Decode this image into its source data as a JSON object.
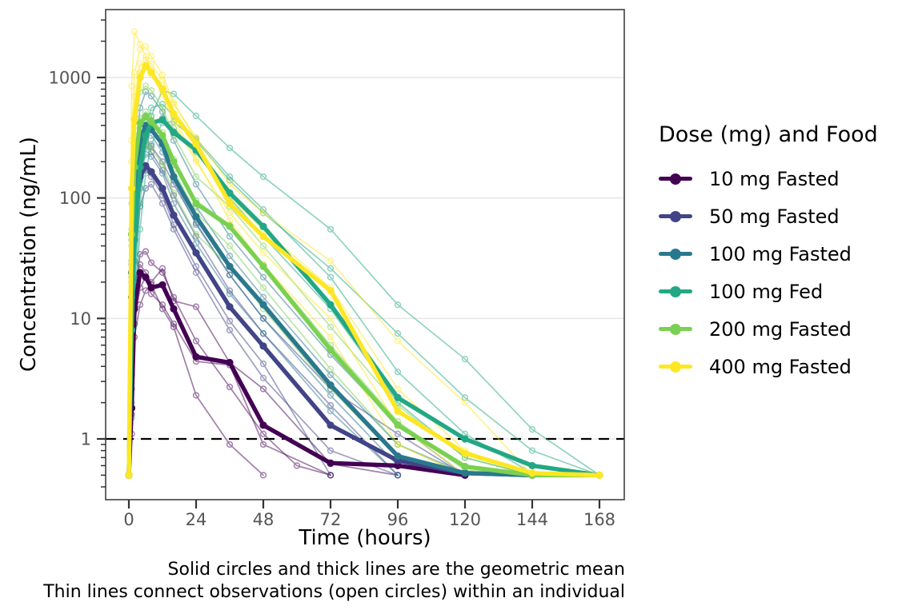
{
  "figure": {
    "y_axis": {
      "label": "Concentration (ng/mL)",
      "ticks": [
        {
          "label": "1000",
          "value": 1000
        },
        {
          "label": "100",
          "value": 100
        },
        {
          "label": "10",
          "value": 10
        },
        {
          "label": "1",
          "value": 1
        }
      ]
    },
    "x_axis": {
      "label": "Time (hours)",
      "ticks": [
        {
          "label": "0",
          "value": 0
        },
        {
          "label": "24",
          "value": 24
        },
        {
          "label": "48",
          "value": 48
        },
        {
          "label": "72",
          "value": 72
        },
        {
          "label": "96",
          "value": 96
        },
        {
          "label": "120",
          "value": 120
        },
        {
          "label": "144",
          "value": 144
        },
        {
          "label": "168",
          "value": 168
        }
      ]
    },
    "legend": {
      "title": "Dose (mg) and Food",
      "items": [
        {
          "label": "10 mg Fasted",
          "color": "#440154"
        },
        {
          "label": "50 mg Fasted",
          "color": "#414487"
        },
        {
          "label": "100 mg Fasted",
          "color": "#2a788e"
        },
        {
          "label": "100 mg Fed",
          "color": "#22a884"
        },
        {
          "label": "200 mg Fasted",
          "color": "#7ad151"
        },
        {
          "label": "400 mg Fasted",
          "color": "#fde725"
        }
      ]
    },
    "caption": {
      "line1": "Solid circles and thick lines are the geometric mean",
      "line2": "Thin lines connect observations (open circles) within an individual"
    }
  },
  "chart_data": {
    "type": "line",
    "title": "",
    "xlabel": "Time (hours)",
    "ylabel": "Concentration (ng/mL)",
    "y_scale": "log10",
    "ylim": [
      0.31,
      3660
    ],
    "xlim": [
      -8,
      177
    ],
    "grid": "major-y-only",
    "legend_position": "right",
    "y_gridlines": [
      1,
      10,
      100,
      1000
    ],
    "reference_hline": 1,
    "lloq_floor_value": 0.5,
    "colors": {
      "grid": "#e8e8e8",
      "panel_border": "#404040",
      "tick": "#333333",
      "tick_label": "#555555",
      "reference_line": "#000000"
    },
    "series": [
      {
        "name": "10 mg Fasted",
        "color": "#440154",
        "times": [
          0,
          1,
          2,
          4,
          6,
          8,
          12,
          16,
          24,
          36,
          48,
          72,
          96,
          120
        ],
        "values": [
          0.5,
          1.8,
          12,
          24,
          22,
          18,
          19,
          12,
          4.8,
          4.3,
          1.3,
          0.63,
          0.6,
          0.5
        ]
      },
      {
        "name": "50 mg Fasted",
        "color": "#414487",
        "times": [
          0,
          1,
          2,
          4,
          6,
          8,
          12,
          16,
          24,
          36,
          48,
          72,
          96,
          120,
          144
        ],
        "values": [
          0.5,
          15,
          62,
          150,
          185,
          165,
          120,
          72,
          35,
          12.5,
          5.9,
          1.3,
          0.66,
          0.52,
          0.5
        ]
      },
      {
        "name": "100 mg Fasted",
        "color": "#2a788e",
        "times": [
          0,
          1,
          2,
          4,
          6,
          8,
          12,
          16,
          24,
          36,
          48,
          72,
          96,
          120,
          144
        ],
        "values": [
          0.5,
          24,
          100,
          300,
          400,
          370,
          280,
          150,
          70,
          27,
          13,
          2.8,
          0.72,
          0.52,
          0.5
        ]
      },
      {
        "name": "100 mg Fed",
        "color": "#22a884",
        "times": [
          0,
          1,
          2,
          4,
          6,
          8,
          12,
          16,
          24,
          36,
          48,
          72,
          96,
          120,
          144,
          168
        ],
        "values": [
          0.5,
          8,
          45,
          180,
          330,
          420,
          445,
          350,
          250,
          110,
          58,
          13,
          2.2,
          1.0,
          0.6,
          0.5
        ]
      },
      {
        "name": "200 mg Fasted",
        "color": "#7ad151",
        "times": [
          0,
          1,
          2,
          4,
          6,
          8,
          12,
          16,
          24,
          36,
          48,
          72,
          96,
          120,
          144,
          168
        ],
        "values": [
          0.5,
          50,
          180,
          420,
          470,
          430,
          330,
          200,
          90,
          58,
          27,
          5.5,
          1.3,
          0.59,
          0.5,
          0.5
        ]
      },
      {
        "name": "400 mg Fasted",
        "color": "#fde725",
        "times": [
          0,
          1,
          2,
          4,
          6,
          8,
          12,
          16,
          24,
          36,
          48,
          72,
          96,
          120,
          144,
          168
        ],
        "values": [
          0.5,
          120,
          450,
          1000,
          1250,
          1100,
          800,
          500,
          280,
          90,
          48,
          17,
          1.7,
          0.76,
          0.52,
          0.5
        ]
      }
    ],
    "individuals": [
      {
        "group": "10 mg Fasted",
        "color": "#440154",
        "times": [
          0,
          1,
          2,
          4,
          6,
          8,
          12,
          16,
          24,
          36,
          48,
          60,
          72
        ],
        "values": [
          0.5,
          2.6,
          16,
          34,
          36,
          29,
          24,
          15,
          6.5,
          2.7,
          1.1,
          0.6,
          0.5
        ]
      },
      {
        "group": "10 mg Fasted",
        "color": "#440154",
        "times": [
          0,
          1,
          2,
          4,
          6,
          8,
          12,
          16,
          24,
          36,
          48
        ],
        "values": [
          0.5,
          1.1,
          7,
          13,
          17,
          19,
          12,
          8.5,
          2.3,
          0.9,
          0.5
        ]
      },
      {
        "group": "10 mg Fasted",
        "color": "#440154",
        "times": [
          0,
          1,
          2,
          4,
          6,
          8,
          12,
          16,
          24,
          36,
          48,
          72,
          96
        ],
        "values": [
          0.5,
          3.4,
          20,
          28,
          24,
          20,
          26,
          14,
          12.5,
          4.3,
          2.6,
          0.62,
          0.5
        ]
      },
      {
        "group": "10 mg Fasted",
        "color": "#440154",
        "times": [
          0,
          1,
          2,
          4,
          6,
          8,
          12,
          16,
          24,
          36,
          48,
          72
        ],
        "values": [
          0.5,
          1.6,
          9,
          18,
          22,
          16,
          13,
          9,
          4.4,
          4.1,
          0.9,
          0.5
        ]
      },
      {
        "group": "50 mg Fasted",
        "color": "#414487",
        "times": [
          0,
          1,
          2,
          4,
          6,
          8,
          12,
          16,
          24,
          36,
          48,
          72,
          96
        ],
        "values": [
          0.5,
          22,
          95,
          230,
          270,
          240,
          170,
          105,
          48,
          17,
          7.5,
          1.9,
          0.5
        ]
      },
      {
        "group": "50 mg Fasted",
        "color": "#414487",
        "times": [
          0,
          1,
          2,
          4,
          6,
          8,
          12,
          16,
          24,
          36,
          48,
          72,
          96
        ],
        "values": [
          0.5,
          7,
          30,
          85,
          120,
          130,
          90,
          55,
          24,
          8,
          3.2,
          0.8,
          0.5
        ]
      },
      {
        "group": "50 mg Fasted",
        "color": "#414487",
        "times": [
          0,
          1,
          2,
          4,
          6,
          8,
          12,
          16,
          24,
          36,
          48,
          72,
          96,
          120
        ],
        "values": [
          0.5,
          28,
          120,
          240,
          310,
          270,
          200,
          130,
          62,
          23,
          10,
          2.6,
          1.1,
          0.5
        ]
      },
      {
        "group": "50 mg Fasted",
        "color": "#414487",
        "times": [
          0,
          1,
          2,
          4,
          6,
          8,
          12,
          16,
          24,
          36,
          48,
          72
        ],
        "values": [
          0.5,
          11,
          50,
          140,
          170,
          150,
          105,
          60,
          27,
          9.5,
          4.2,
          0.5
        ]
      },
      {
        "group": "100 mg Fasted",
        "color": "#2a788e",
        "times": [
          0,
          1,
          2,
          4,
          6,
          8,
          12,
          16,
          24,
          36,
          48,
          72,
          96,
          120
        ],
        "values": [
          0.5,
          45,
          190,
          560,
          760,
          700,
          520,
          300,
          130,
          48,
          22,
          5.0,
          1.3,
          0.5
        ]
      },
      {
        "group": "100 mg Fasted",
        "color": "#2a788e",
        "times": [
          0,
          1,
          2,
          4,
          6,
          8,
          12,
          16,
          24,
          36,
          48,
          72,
          96
        ],
        "values": [
          0.5,
          12,
          55,
          170,
          230,
          220,
          160,
          90,
          42,
          16,
          7.5,
          1.7,
          0.5
        ]
      },
      {
        "group": "100 mg Fasted",
        "color": "#2a788e",
        "times": [
          0,
          1,
          2,
          4,
          6,
          8,
          12,
          16,
          24,
          36,
          48,
          72,
          96,
          120,
          144
        ],
        "values": [
          0.5,
          30,
          130,
          380,
          480,
          440,
          330,
          190,
          85,
          33,
          15,
          3.4,
          0.9,
          0.52,
          0.5
        ]
      },
      {
        "group": "100 mg Fasted",
        "color": "#2a788e",
        "times": [
          0,
          1,
          2,
          4,
          6,
          8,
          12,
          16,
          24,
          36,
          48,
          72,
          96,
          120
        ],
        "values": [
          0.5,
          20,
          85,
          260,
          350,
          330,
          240,
          140,
          60,
          23,
          10,
          2.3,
          0.6,
          0.5
        ]
      },
      {
        "group": "100 mg Fed",
        "color": "#22a884",
        "times": [
          0,
          1,
          2,
          4,
          6,
          8,
          12,
          16,
          24,
          36,
          48,
          72,
          96,
          120,
          144,
          168
        ],
        "values": [
          0.5,
          2,
          14,
          90,
          260,
          480,
          780,
          730,
          480,
          260,
          150,
          55,
          13,
          4.6,
          1.2,
          0.5
        ]
      },
      {
        "group": "100 mg Fed",
        "color": "#22a884",
        "times": [
          0,
          1,
          2,
          4,
          6,
          8,
          12,
          16,
          24,
          36,
          48,
          72,
          96,
          120,
          144,
          168
        ],
        "values": [
          0.5,
          5,
          30,
          150,
          380,
          560,
          600,
          480,
          310,
          150,
          80,
          22,
          3.6,
          1.1,
          0.52,
          0.5
        ]
      },
      {
        "group": "100 mg Fed",
        "color": "#22a884",
        "times": [
          0,
          1,
          2,
          4,
          6,
          8,
          12,
          16,
          24,
          36,
          48,
          72,
          96,
          120,
          144,
          168
        ],
        "values": [
          0.5,
          1.5,
          9,
          55,
          160,
          280,
          420,
          430,
          300,
          140,
          75,
          26,
          7.5,
          2.2,
          0.8,
          0.5
        ]
      },
      {
        "group": "100 mg Fed",
        "color": "#22a884",
        "times": [
          0,
          1,
          2,
          4,
          6,
          8,
          12,
          16,
          24,
          36,
          48,
          72,
          96,
          120,
          144
        ],
        "values": [
          0.5,
          3.5,
          22,
          120,
          300,
          420,
          460,
          380,
          240,
          100,
          48,
          12,
          2.0,
          0.7,
          0.5
        ]
      },
      {
        "group": "200 mg Fasted",
        "color": "#7ad151",
        "times": [
          0,
          1,
          2,
          4,
          6,
          8,
          12,
          16,
          24,
          36,
          48,
          72,
          96,
          120,
          144
        ],
        "values": [
          0.5,
          90,
          330,
          760,
          850,
          780,
          560,
          330,
          150,
          85,
          40,
          8.5,
          1.9,
          0.7,
          0.5
        ]
      },
      {
        "group": "200 mg Fasted",
        "color": "#7ad151",
        "times": [
          0,
          1,
          2,
          4,
          6,
          8,
          12,
          16,
          24,
          36,
          48,
          72,
          96,
          120
        ],
        "values": [
          0.5,
          25,
          95,
          230,
          280,
          260,
          190,
          110,
          50,
          27,
          12,
          2.6,
          0.7,
          0.5
        ]
      },
      {
        "group": "200 mg Fasted",
        "color": "#7ad151",
        "times": [
          0,
          1,
          2,
          4,
          6,
          8,
          12,
          16,
          24,
          36,
          48,
          72,
          96,
          120,
          144,
          168
        ],
        "values": [
          0.5,
          55,
          200,
          460,
          520,
          470,
          350,
          210,
          95,
          60,
          28,
          6.0,
          1.4,
          0.55,
          0.5,
          0.5
        ]
      },
      {
        "group": "200 mg Fasted",
        "color": "#7ad151",
        "times": [
          0,
          1,
          2,
          4,
          6,
          8,
          12,
          16,
          24,
          36,
          48,
          72,
          96,
          120
        ],
        "values": [
          0.5,
          40,
          150,
          380,
          430,
          390,
          290,
          170,
          75,
          40,
          18,
          3.8,
          0.9,
          0.5
        ]
      },
      {
        "group": "400 mg Fasted",
        "color": "#fde725",
        "times": [
          0,
          1,
          2,
          4,
          6,
          8,
          12,
          16,
          24,
          36,
          48,
          72,
          96,
          120
        ],
        "values": [
          0.5,
          850,
          2400,
          1900,
          1500,
          1150,
          780,
          460,
          210,
          65,
          28,
          7.0,
          0.9,
          0.5
        ]
      },
      {
        "group": "400 mg Fasted",
        "color": "#fde725",
        "times": [
          0,
          1,
          2,
          4,
          6,
          8,
          12,
          16,
          24,
          36,
          48,
          72,
          96,
          120,
          144
        ],
        "values": [
          0.5,
          300,
          1100,
          1700,
          1800,
          1500,
          1050,
          620,
          300,
          100,
          55,
          18,
          2.6,
          0.8,
          0.5
        ]
      },
      {
        "group": "400 mg Fasted",
        "color": "#fde725",
        "times": [
          0,
          1,
          2,
          4,
          6,
          8,
          12,
          16,
          24,
          36,
          48,
          72,
          96,
          120,
          144
        ],
        "values": [
          0.5,
          120,
          500,
          1100,
          1400,
          1300,
          950,
          600,
          320,
          130,
          75,
          30,
          6.5,
          2.0,
          0.5
        ]
      },
      {
        "group": "400 mg Fasted",
        "color": "#fde725",
        "times": [
          0,
          1,
          2,
          4,
          6,
          8,
          12,
          16,
          24,
          36,
          48,
          72,
          96,
          120
        ],
        "values": [
          0.5,
          200,
          700,
          1300,
          1250,
          1050,
          720,
          420,
          200,
          75,
          35,
          10,
          1.3,
          0.5
        ]
      }
    ]
  }
}
